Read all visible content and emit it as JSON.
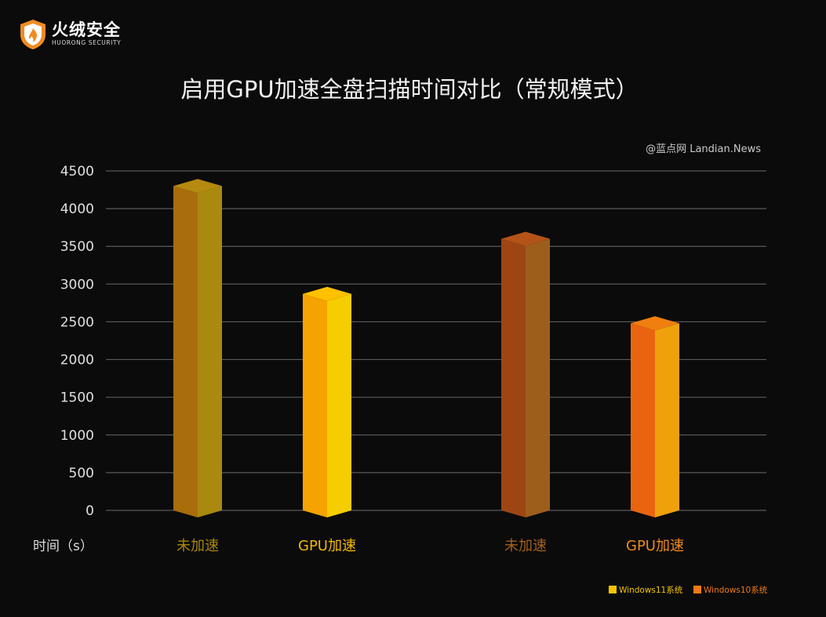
{
  "brand": {
    "name_cn": "火绒安全",
    "name_en": "HUORONG SECURITY"
  },
  "watermark": "@蓝点网 Landian.News",
  "chart_data": {
    "type": "bar",
    "title": "启用GPU加速全盘扫描时间对比（常规模式）",
    "ylabel": "时间（s）",
    "ylim": [
      0,
      4500
    ],
    "yticks": [
      0,
      500,
      1000,
      1500,
      2000,
      2500,
      3000,
      3500,
      4000,
      4500
    ],
    "grid": true,
    "legend_position": "bottom-right",
    "bars": [
      {
        "label": "未加速",
        "series": "Windows11系统",
        "value": 4300,
        "front": "#a96d0b",
        "side": "#a98910",
        "top": "#b58a0f",
        "label_color": "#a8860f"
      },
      {
        "label": "GPU加速",
        "series": "Windows11系统",
        "value": 2870,
        "front": "#f5a300",
        "side": "#f6cd00",
        "top": "#ffc100",
        "label_color": "#f3b800"
      },
      {
        "label": "未加速",
        "series": "Windows10系统",
        "value": 3600,
        "front": "#9e4514",
        "side": "#9d5e1c",
        "top": "#b45318",
        "label_color": "#a55f1a"
      },
      {
        "label": "GPU加速",
        "series": "Windows10系统",
        "value": 2480,
        "front": "#ea6410",
        "side": "#eea10a",
        "top": "#f07f10",
        "label_color": "#f08a1d"
      }
    ],
    "legend": [
      {
        "name": "Windows11系统",
        "color": "#f5c400"
      },
      {
        "name": "Windows10系统",
        "color": "#ee7a16"
      }
    ]
  }
}
